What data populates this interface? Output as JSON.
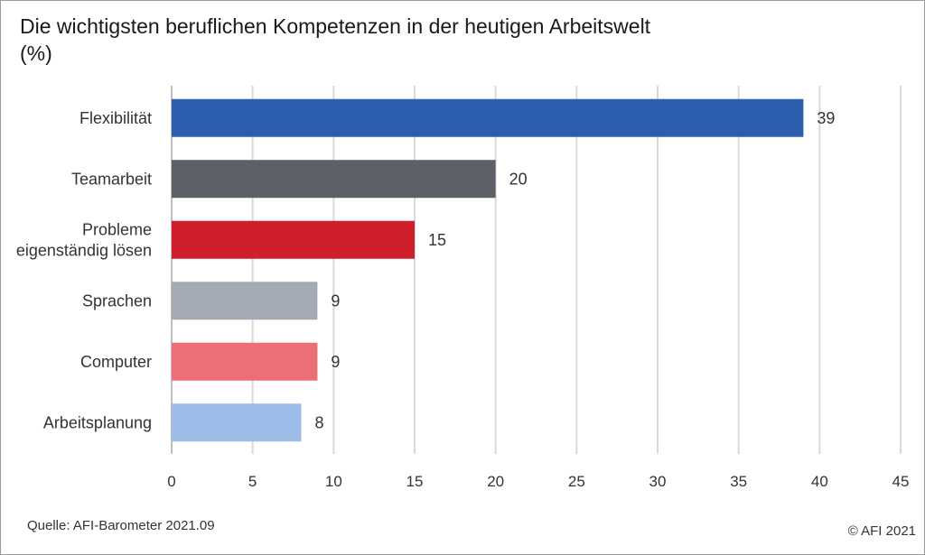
{
  "chart_data": {
    "type": "bar",
    "orientation": "horizontal",
    "title": "Die wichtigsten beruflichen Kompetenzen in der heutigen Arbeitswelt",
    "subtitle": "(%)",
    "categories": [
      "Flexibilität",
      "Teamarbeit",
      "Probleme\neigenständig lösen",
      "Sprachen",
      "Computer",
      "Arbeitsplanung"
    ],
    "values": [
      39,
      20,
      15,
      9,
      9,
      8
    ],
    "colors": [
      "#2b5fad",
      "#5c6067",
      "#d01e2b",
      "#a3aab3",
      "#ec6f76",
      "#9dbde8"
    ],
    "xlim": [
      0,
      45
    ],
    "xticks": [
      0,
      5,
      10,
      15,
      20,
      25,
      30,
      35,
      40,
      45
    ],
    "grid": "vertical",
    "data_labels": true
  },
  "footer": {
    "source": "Quelle: AFI-Barometer 2021.09",
    "copyright": "© AFI 2021"
  }
}
